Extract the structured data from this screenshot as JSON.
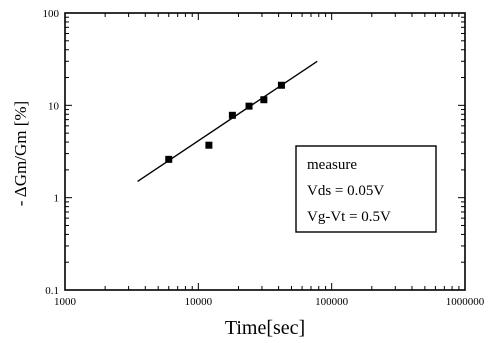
{
  "chart_data": {
    "type": "scatter",
    "x_scale": "log",
    "y_scale": "log",
    "xlim": [
      1000,
      1000000
    ],
    "ylim": [
      0.1,
      100
    ],
    "xlabel": "Time[sec]",
    "ylabel": "- ΔGm/Gm [%]",
    "x_ticks": [
      "1000",
      "10000",
      "100000",
      "1000000"
    ],
    "y_ticks": [
      "0.1",
      "1",
      "10",
      "100"
    ],
    "grid": false,
    "legend_position": "right",
    "legend_lines": [
      "measure",
      "Vds = 0.05V",
      "Vg-Vt = 0.5V"
    ],
    "series": [
      {
        "name": "measure",
        "marker": "square",
        "points": [
          {
            "x": 6000,
            "y": 2.6
          },
          {
            "x": 12000,
            "y": 3.7
          },
          {
            "x": 18000,
            "y": 7.8
          },
          {
            "x": 24000,
            "y": 9.8
          },
          {
            "x": 31000,
            "y": 11.5
          },
          {
            "x": 42000,
            "y": 16.5
          }
        ]
      }
    ],
    "fit_line": {
      "x": [
        3500,
        78000
      ],
      "y": [
        1.5,
        30
      ]
    }
  }
}
